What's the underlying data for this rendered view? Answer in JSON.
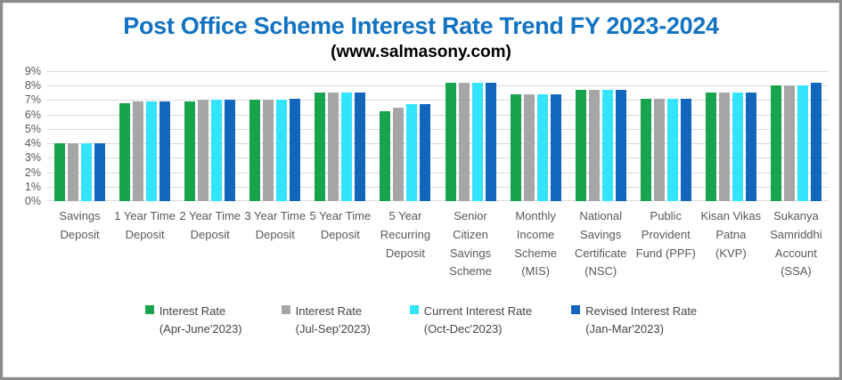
{
  "header": {
    "title": "Post Office Scheme Interest Rate Trend FY 2023-2024",
    "subtitle": "(www.salmasony.com)"
  },
  "chart_data": {
    "type": "bar",
    "title": "Post Office Scheme Interest Rate Trend FY 2023-2024",
    "subtitle": "(www.salmasony.com)",
    "categories": [
      "Savings Deposit",
      "1 Year Time Deposit",
      "2 Year Time Deposit",
      "3 Year Time Deposit",
      "5 Year Time Deposit",
      "5 Year Recurring Deposit",
      "Senior Citizen Savings Scheme",
      "Monthly Income Scheme (MIS)",
      "National Savings Certificate (NSC)",
      "Public Provident Fund (PPF)",
      "Kisan Vikas Patna (KVP)",
      "Sukanya Samriddhi Account (SSA)"
    ],
    "series": [
      {
        "name": "Interest Rate",
        "period": "(Apr-June'2023)",
        "color": "#18a44c",
        "values": [
          4.0,
          6.8,
          6.9,
          7.0,
          7.5,
          6.2,
          8.2,
          7.4,
          7.7,
          7.1,
          7.5,
          8.0
        ]
      },
      {
        "name": "Interest Rate",
        "period": "(Jul-Sep'2023)",
        "color": "#a6a6a6",
        "values": [
          4.0,
          6.9,
          7.0,
          7.0,
          7.5,
          6.5,
          8.2,
          7.4,
          7.7,
          7.1,
          7.5,
          8.0
        ]
      },
      {
        "name": "Current Interest Rate",
        "period": "(Oct-Dec'2023)",
        "color": "#33e4fe",
        "values": [
          4.0,
          6.9,
          7.0,
          7.0,
          7.5,
          6.7,
          8.2,
          7.4,
          7.7,
          7.1,
          7.5,
          8.0
        ]
      },
      {
        "name": "Revised Interest Rate",
        "period": "(Jan-Mar'2023)",
        "color": "#1267bc",
        "values": [
          4.0,
          6.9,
          7.0,
          7.1,
          7.5,
          6.7,
          8.2,
          7.4,
          7.7,
          7.1,
          7.5,
          8.2
        ]
      }
    ],
    "ylim": [
      0,
      9
    ],
    "y_tick_step": 1,
    "y_tick_suffix": "%",
    "grid": true,
    "legend_position": "bottom"
  },
  "style_colors": {
    "title_blue": "#1272c2",
    "axis_text": "#595959",
    "gridline": "#d9d9d9",
    "frame_border": "#8c8c8c"
  }
}
